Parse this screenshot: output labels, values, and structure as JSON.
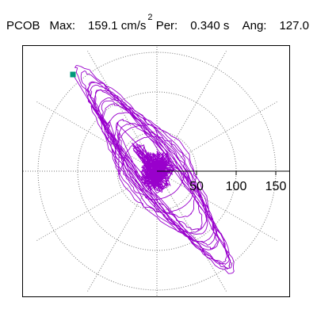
{
  "header": {
    "station": "PCOB",
    "max_label": "Max:",
    "max_value": "159.1 cm/s",
    "max_exponent": "2",
    "per_label": "Per:",
    "per_value": "0.340 s",
    "ang_label": "Ang:",
    "ang_value": "127.0"
  },
  "colors": {
    "trace": "#9900cc",
    "marker": "#00997a",
    "grid": "#777777",
    "axis": "#000000"
  },
  "chart_data": {
    "type": "polar-particle-motion",
    "title": "",
    "radial_ticks": [
      "50",
      "100",
      "150"
    ],
    "radial_tick_values": [
      50,
      100,
      150
    ],
    "rings": [
      50,
      100,
      150
    ],
    "spokes_deg": [
      0,
      30,
      60,
      90,
      120,
      150,
      180,
      210,
      240,
      270,
      300,
      330
    ],
    "max_acceleration_cm_s2": 159.1,
    "period_s": 0.34,
    "angle_deg": 127.0,
    "start_point": [
      -106,
      122
    ],
    "grid": true
  }
}
